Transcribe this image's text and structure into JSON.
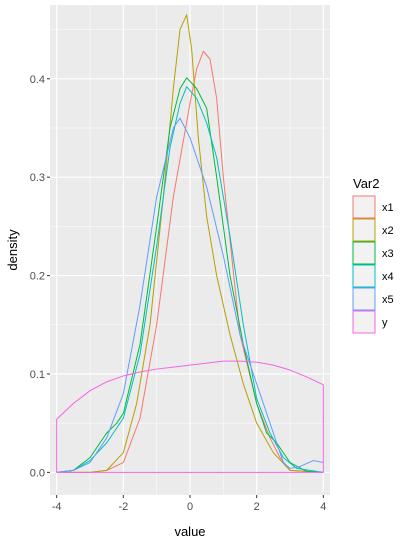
{
  "chart_data": {
    "type": "line",
    "title": "",
    "xlabel": "value",
    "ylabel": "density",
    "xlim": [
      -4.2,
      4.2
    ],
    "ylim": [
      -0.023,
      0.475
    ],
    "x_ticks": [
      -4,
      -2,
      0,
      2,
      4
    ],
    "y_ticks": [
      0.0,
      0.1,
      0.2,
      0.3,
      0.4
    ],
    "x_tick_labels": [
      "-4",
      "-2",
      "0",
      "2",
      "4"
    ],
    "y_tick_labels": [
      "0.0",
      "0.1",
      "0.2",
      "0.3",
      "0.4"
    ],
    "grid": true,
    "background": "#EBEBEB",
    "legend_title": "Var2",
    "legend_position": "right",
    "series": [
      {
        "name": "x1",
        "color": "#F8766D",
        "x": [
          -4,
          -3,
          -2.5,
          -2,
          -1.5,
          -1,
          -0.5,
          0,
          0.2,
          0.4,
          0.6,
          0.8,
          1,
          1.5,
          2,
          2.4,
          2.7,
          3,
          4
        ],
        "y": [
          0,
          0,
          0.002,
          0.01,
          0.055,
          0.15,
          0.28,
          0.375,
          0.41,
          0.428,
          0.42,
          0.38,
          0.3,
          0.14,
          0.07,
          0.035,
          0.015,
          0.002,
          0
        ]
      },
      {
        "name": "x2",
        "color": "#B79F00",
        "x": [
          -4,
          -3,
          -2.5,
          -2,
          -1.6,
          -1.2,
          -0.8,
          -0.5,
          -0.3,
          -0.1,
          0.05,
          0.25,
          0.5,
          0.8,
          1.2,
          1.6,
          2,
          2.5,
          3,
          4
        ],
        "y": [
          0,
          0,
          0.002,
          0.02,
          0.07,
          0.15,
          0.28,
          0.39,
          0.45,
          0.465,
          0.43,
          0.34,
          0.26,
          0.2,
          0.14,
          0.09,
          0.05,
          0.02,
          0.002,
          0
        ]
      },
      {
        "name": "x3",
        "color": "#00BA38",
        "x": [
          -4,
          -3.5,
          -3,
          -2.5,
          -2.2,
          -2,
          -1.5,
          -1,
          -0.6,
          -0.3,
          -0.1,
          0.2,
          0.5,
          0.8,
          1.2,
          1.6,
          2,
          2.3,
          2.6,
          3,
          3.5,
          4
        ],
        "y": [
          0,
          0.002,
          0.015,
          0.04,
          0.05,
          0.06,
          0.13,
          0.25,
          0.35,
          0.39,
          0.401,
          0.39,
          0.37,
          0.3,
          0.2,
          0.13,
          0.07,
          0.04,
          0.03,
          0.01,
          0.001,
          0
        ]
      },
      {
        "name": "x4",
        "color": "#00BFC4",
        "x": [
          -4,
          -3.5,
          -3,
          -2.5,
          -2,
          -1.5,
          -1,
          -0.6,
          -0.3,
          -0.1,
          0.2,
          0.5,
          0.8,
          1.2,
          1.6,
          2,
          2.4,
          2.8,
          3.2,
          4
        ],
        "y": [
          0,
          0.002,
          0.012,
          0.03,
          0.055,
          0.12,
          0.23,
          0.33,
          0.375,
          0.392,
          0.38,
          0.355,
          0.32,
          0.24,
          0.15,
          0.075,
          0.04,
          0.015,
          0.004,
          0
        ]
      },
      {
        "name": "x5",
        "color": "#619CFF",
        "x": [
          -4,
          -3.5,
          -3,
          -2.5,
          -2,
          -1.5,
          -1,
          -0.5,
          -0.3,
          0,
          0.5,
          1,
          1.5,
          2,
          2.5,
          2.8,
          3,
          3.3,
          3.7,
          4
        ],
        "y": [
          0,
          0.002,
          0.01,
          0.035,
          0.08,
          0.17,
          0.28,
          0.35,
          0.36,
          0.34,
          0.29,
          0.22,
          0.14,
          0.09,
          0.04,
          0.01,
          0.004,
          0.006,
          0.012,
          0.01
        ]
      },
      {
        "name": "y",
        "color": "#F564E3",
        "x": [
          -4,
          -4,
          -3.5,
          -3,
          -2.5,
          -2,
          -1.5,
          -1,
          -0.5,
          0,
          0.5,
          1,
          1.5,
          2,
          2.5,
          3,
          3.5,
          4,
          4,
          -4
        ],
        "y": [
          0,
          0.054,
          0.07,
          0.083,
          0.092,
          0.098,
          0.102,
          0.105,
          0.107,
          0.109,
          0.111,
          0.113,
          0.113,
          0.112,
          0.109,
          0.104,
          0.097,
          0.089,
          0,
          0
        ]
      }
    ]
  }
}
